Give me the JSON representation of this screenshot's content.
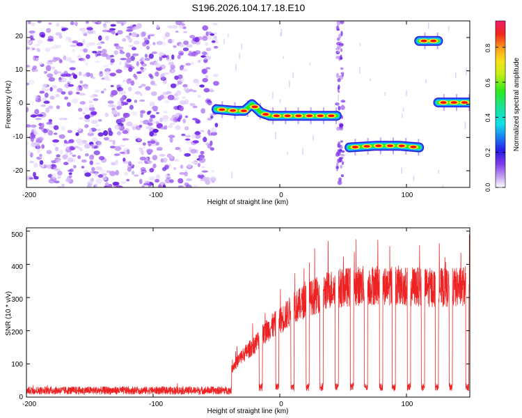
{
  "title": "S196.2026.104.17.18.E10",
  "chart_data": [
    {
      "type": "heatmap",
      "xlabel": "Height of straight line (km)",
      "ylabel": "Frequency (Hz)",
      "xlim": [
        -200,
        150
      ],
      "ylim": [
        -25,
        25
      ],
      "xticks": [
        -200,
        -100,
        0,
        100
      ],
      "xtick_labels": [
        "-200",
        "-100",
        "0",
        "100"
      ],
      "yticks": [
        -20,
        -10,
        0,
        10,
        20
      ],
      "ytick_labels": [
        "-20",
        "-10",
        "0",
        "10",
        "20"
      ],
      "colorbar": {
        "label": "Normalized spectral amplitude",
        "range": [
          0,
          0.95
        ],
        "ticks": [
          0,
          0.2,
          0.4,
          0.6,
          0.8
        ],
        "tick_labels": [
          "0.0",
          "0.2",
          "0.4",
          "0.6",
          "0.8"
        ]
      },
      "noise_region": {
        "x_range": [
          -200,
          -50
        ],
        "amplitude": "low (0.0-0.25)"
      },
      "extra_noise_strips": [
        {
          "x_range": [
            45,
            50
          ]
        }
      ],
      "tracks": [
        {
          "x_start": -50,
          "x_end": 45,
          "freq_points": [
            [
              -50,
              -1.5
            ],
            [
              -35,
              -2
            ],
            [
              -28,
              -2
            ],
            [
              -22,
              0
            ],
            [
              -15,
              -2.5
            ],
            [
              -8,
              -3.5
            ],
            [
              45,
              -3.5
            ]
          ]
        },
        {
          "x_start": 55,
          "x_end": 110,
          "freq_points": [
            [
              55,
              -13
            ],
            [
              75,
              -12.5
            ],
            [
              95,
              -12.5
            ],
            [
              110,
              -13
            ]
          ]
        },
        {
          "x_start": 110,
          "x_end": 125,
          "freq_points": [
            [
              110,
              19
            ],
            [
              125,
              19
            ]
          ]
        },
        {
          "x_start": 125,
          "x_end": 150,
          "freq_points": [
            [
              125,
              0.5
            ],
            [
              150,
              0.5
            ]
          ]
        }
      ],
      "color": "#ff0000"
    },
    {
      "type": "line",
      "xlabel": "Height of straight line (km)",
      "ylabel": "SNR (10 * v/v)",
      "xlim": [
        -200,
        150
      ],
      "ylim": [
        0,
        510
      ],
      "xticks": [
        -200,
        -100,
        0,
        100
      ],
      "xtick_labels": [
        "-200",
        "-100",
        "0",
        "100"
      ],
      "yticks": [
        0,
        100,
        200,
        300,
        400,
        500
      ],
      "ytick_labels": [
        "0",
        "100",
        "200",
        "300",
        "400",
        "500"
      ],
      "series": [
        {
          "name": "SNR",
          "color": "#ee2222",
          "noise_floor": {
            "x_range": [
              -200,
              -38
            ],
            "mean": 20,
            "spread": 12
          },
          "envelope": [
            [
              -38,
              100
            ],
            [
              -30,
              140
            ],
            [
              -20,
              180
            ],
            [
              -10,
              230
            ],
            [
              0,
              260
            ],
            [
              10,
              300
            ],
            [
              20,
              330
            ],
            [
              30,
              350
            ],
            [
              40,
              370
            ],
            [
              50,
              375
            ],
            [
              60,
              380
            ],
            [
              80,
              385
            ],
            [
              100,
              380
            ],
            [
              120,
              375
            ],
            [
              140,
              375
            ],
            [
              150,
              385
            ]
          ],
          "dropouts_x": [
            -15,
            -2,
            10,
            22,
            33,
            45,
            57,
            68,
            80,
            90,
            102,
            113,
            124,
            135,
            148
          ],
          "dropout_level": 30
        }
      ]
    }
  ]
}
